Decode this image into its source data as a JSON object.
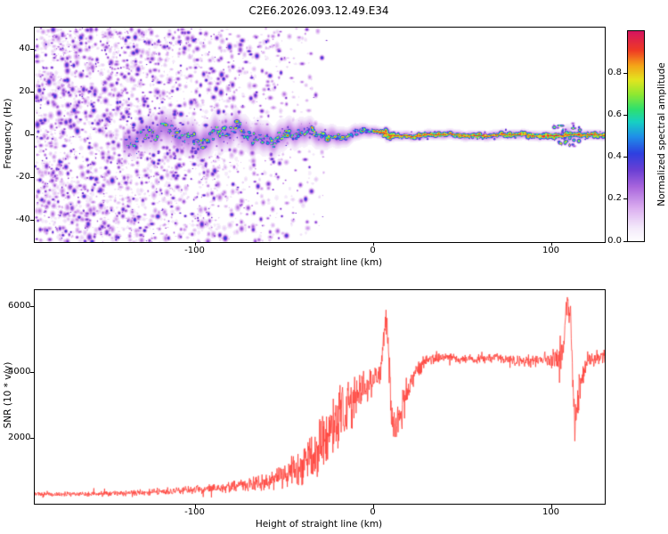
{
  "title": "C2E6.2026.093.12.49.E34",
  "chart_data": [
    {
      "type": "heatmap",
      "name": "range-doppler-spectrogram",
      "xlabel": "Height of straight line (km)",
      "ylabel": "Frequency (Hz)",
      "xlim": [
        -190,
        130
      ],
      "ylim": [
        -50,
        50
      ],
      "x_ticks": [
        -100,
        0,
        100
      ],
      "y_ticks": [
        -40,
        -20,
        0,
        20,
        40
      ],
      "grid": false,
      "colorbar": {
        "label": "Normalized spectral amplitude",
        "ticks": [
          0.0,
          0.2,
          0.4,
          0.6,
          0.8
        ],
        "range": [
          0,
          1
        ],
        "stops": [
          [
            0,
            "#ffffff"
          ],
          [
            0.07,
            "#f3e8fa"
          ],
          [
            0.16,
            "#dbaef0"
          ],
          [
            0.26,
            "#a966dd"
          ],
          [
            0.34,
            "#6b3fd4"
          ],
          [
            0.42,
            "#2e3fe0"
          ],
          [
            0.5,
            "#1f8fe8"
          ],
          [
            0.57,
            "#17d0c4"
          ],
          [
            0.63,
            "#2ee06e"
          ],
          [
            0.7,
            "#8ee832"
          ],
          [
            0.77,
            "#e3e51f"
          ],
          [
            0.84,
            "#f5a218"
          ],
          [
            0.91,
            "#ef3b24"
          ],
          [
            1,
            "#d6155f"
          ]
        ]
      },
      "features": {
        "noise_field": {
          "x_range_km": [
            -190,
            -25
          ],
          "amplitude_range": [
            0.05,
            0.45
          ],
          "description": "dense low-amplitude purple speckle noise across all frequencies at far left, density fades to zero near -25 km"
        },
        "echo_band": {
          "center_freq_hz": 0,
          "x_start_km": -138,
          "description": "wiggly high-amplitude echo trace around 0 Hz; wide speckled cyan/green band with purple halo left of 0 km, narrowing to a thin continuous red line with purple fringe right of 0 km",
          "band_params_format": "[km, halo_halfwidth_hz, core_halfwidth_hz, speckle_prob, max_amplitude]",
          "band_params": [
            [
              -140,
              7,
              3,
              0.15,
              0.85
            ],
            [
              -125,
              9,
              3.5,
              0.75,
              0.95
            ],
            [
              -90,
              9,
              3.5,
              0.9,
              1
            ],
            [
              -60,
              8,
              3,
              0.9,
              1
            ],
            [
              -35,
              6.5,
              2.4,
              0.9,
              1
            ],
            [
              -15,
              4.5,
              1.8,
              0.95,
              1
            ],
            [
              0,
              3,
              1.4,
              1,
              1
            ],
            [
              15,
              2.6,
              1.2,
              1,
              1
            ],
            [
              130,
              2.6,
              1.2,
              1,
              1
            ]
          ],
          "wiggle_amp_format": "[km, center_wiggle_amplitude_hz]",
          "wiggle_amp": [
            [
              -140,
              5
            ],
            [
              -80,
              4.5
            ],
            [
              -40,
              3
            ],
            [
              -20,
              1.8
            ],
            [
              0,
              0.9
            ],
            [
              130,
              0.45
            ]
          ]
        },
        "disturbances_km": [
          8,
          109
        ]
      }
    },
    {
      "type": "line",
      "name": "snr-profile",
      "xlabel": "Height of straight line (km)",
      "ylabel": "SNR (10 * v/v)",
      "xlim": [
        -190,
        130
      ],
      "ylim": [
        0,
        6500
      ],
      "x_ticks": [
        -100,
        0,
        100
      ],
      "y_ticks": [
        2000,
        4000,
        6000
      ],
      "line_color": "#ff4038",
      "profile_format": "[km, mean_snr, noise_amplitude]",
      "profile": [
        [
          -190,
          290,
          70
        ],
        [
          -160,
          300,
          80
        ],
        [
          -130,
          340,
          100
        ],
        [
          -110,
          390,
          130
        ],
        [
          -90,
          470,
          170
        ],
        [
          -75,
          550,
          220
        ],
        [
          -60,
          680,
          300
        ],
        [
          -50,
          850,
          400
        ],
        [
          -42,
          1050,
          550
        ],
        [
          -36,
          1350,
          800
        ],
        [
          -30,
          1700,
          1000
        ],
        [
          -24,
          2200,
          1000
        ],
        [
          -18,
          2700,
          900
        ],
        [
          -12,
          3100,
          750
        ],
        [
          -6,
          3400,
          600
        ],
        [
          0,
          3700,
          450
        ],
        [
          4,
          4000,
          350
        ],
        [
          7,
          5600,
          300
        ],
        [
          8.5,
          5000,
          800
        ],
        [
          10,
          2700,
          700
        ],
        [
          14,
          2500,
          700
        ],
        [
          18,
          3200,
          600
        ],
        [
          24,
          4100,
          350
        ],
        [
          30,
          4350,
          200
        ],
        [
          40,
          4450,
          150
        ],
        [
          55,
          4400,
          150
        ],
        [
          70,
          4450,
          160
        ],
        [
          85,
          4300,
          250
        ],
        [
          95,
          4400,
          200
        ],
        [
          103,
          4350,
          350
        ],
        [
          107,
          4800,
          600
        ],
        [
          109,
          6200,
          300
        ],
        [
          111,
          5600,
          600
        ],
        [
          113,
          2400,
          700
        ],
        [
          116,
          3600,
          600
        ],
        [
          120,
          4350,
          300
        ],
        [
          130,
          4500,
          200
        ]
      ]
    }
  ]
}
